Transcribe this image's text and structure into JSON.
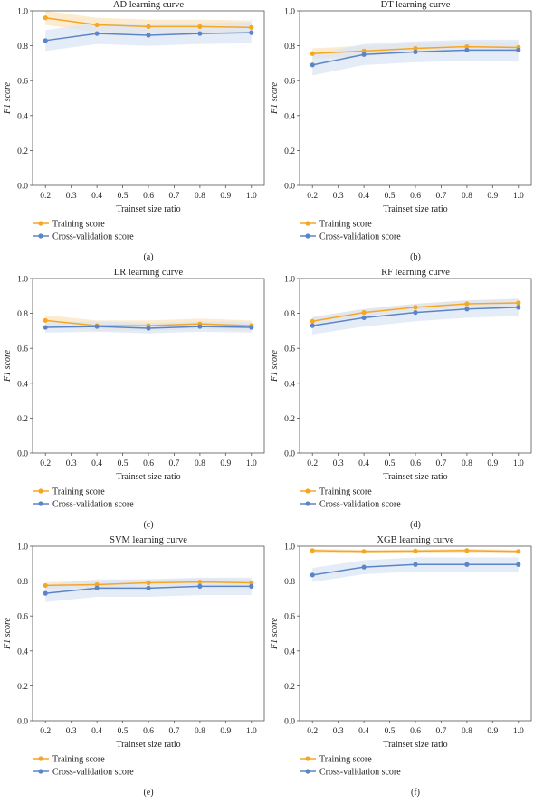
{
  "colors": {
    "training": "#f5a623",
    "cv": "#5b85c6",
    "training_band": "#fbe4bf",
    "cv_band": "#dbe6f6",
    "axis": "#555555"
  },
  "chart_data": [
    {
      "type": "line",
      "title": "AD learning curve",
      "caption": "(a)",
      "xlabel": "Trainset size ratio",
      "ylabel": "F1 score",
      "xlim": [
        0.15,
        1.05
      ],
      "ylim": [
        0.0,
        1.0
      ],
      "xticks": [
        "0.2",
        "0.3",
        "0.4",
        "0.5",
        "0.6",
        "0.7",
        "0.8",
        "0.9",
        "1.0"
      ],
      "yticks": [
        "0.0",
        "0.2",
        "0.4",
        "0.6",
        "0.8",
        "1.0"
      ],
      "x": [
        0.2,
        0.4,
        0.6,
        0.8,
        1.0
      ],
      "series": [
        {
          "name": "Training score",
          "values": [
            0.96,
            0.92,
            0.91,
            0.91,
            0.905
          ],
          "band": 0.04
        },
        {
          "name": "Cross-validation score",
          "values": [
            0.83,
            0.87,
            0.86,
            0.87,
            0.875
          ],
          "band": 0.06
        }
      ],
      "legend": "bottom-left",
      "grid": false
    },
    {
      "type": "line",
      "title": "DT learning curve",
      "caption": "(b)",
      "xlabel": "Trainset size ratio",
      "ylabel": "F1 score",
      "xlim": [
        0.15,
        1.05
      ],
      "ylim": [
        0.0,
        1.0
      ],
      "xticks": [
        "0.2",
        "0.3",
        "0.4",
        "0.5",
        "0.6",
        "0.7",
        "0.8",
        "0.9",
        "1.0"
      ],
      "yticks": [
        "0.0",
        "0.2",
        "0.4",
        "0.6",
        "0.8",
        "1.0"
      ],
      "x": [
        0.2,
        0.4,
        0.6,
        0.8,
        1.0
      ],
      "series": [
        {
          "name": "Training score",
          "values": [
            0.755,
            0.77,
            0.785,
            0.795,
            0.79
          ],
          "band": 0.03
        },
        {
          "name": "Cross-validation score",
          "values": [
            0.69,
            0.75,
            0.765,
            0.775,
            0.775
          ],
          "band": 0.06
        }
      ],
      "legend": "bottom-left",
      "grid": false
    },
    {
      "type": "line",
      "title": "LR learning curve",
      "caption": "(c)",
      "xlabel": "Trainset size ratio",
      "ylabel": "F1 score",
      "xlim": [
        0.15,
        1.05
      ],
      "ylim": [
        0.0,
        1.0
      ],
      "xticks": [
        "0.2",
        "0.3",
        "0.4",
        "0.5",
        "0.6",
        "0.7",
        "0.8",
        "0.9",
        "1.0"
      ],
      "yticks": [
        "0.0",
        "0.2",
        "0.4",
        "0.6",
        "0.8",
        "1.0"
      ],
      "x": [
        0.2,
        0.4,
        0.6,
        0.8,
        1.0
      ],
      "series": [
        {
          "name": "Training score",
          "values": [
            0.76,
            0.73,
            0.73,
            0.74,
            0.73
          ],
          "band": 0.03
        },
        {
          "name": "Cross-validation score",
          "values": [
            0.72,
            0.725,
            0.715,
            0.725,
            0.72
          ],
          "band": 0.03
        }
      ],
      "legend": "bottom-left",
      "grid": false
    },
    {
      "type": "line",
      "title": "RF learning curve",
      "caption": "(d)",
      "xlabel": "Trainset size ratio",
      "ylabel": "F1 score",
      "xlim": [
        0.15,
        1.05
      ],
      "ylim": [
        0.0,
        1.0
      ],
      "xticks": [
        "0.2",
        "0.3",
        "0.4",
        "0.5",
        "0.6",
        "0.7",
        "0.8",
        "0.9",
        "1.0"
      ],
      "yticks": [
        "0.0",
        "0.2",
        "0.4",
        "0.6",
        "0.8",
        "1.0"
      ],
      "x": [
        0.2,
        0.4,
        0.6,
        0.8,
        1.0
      ],
      "series": [
        {
          "name": "Training score",
          "values": [
            0.755,
            0.805,
            0.835,
            0.855,
            0.86
          ],
          "band": 0.02
        },
        {
          "name": "Cross-validation score",
          "values": [
            0.73,
            0.775,
            0.805,
            0.825,
            0.835
          ],
          "band": 0.05
        }
      ],
      "legend": "bottom-left",
      "grid": false
    },
    {
      "type": "line",
      "title": "SVM learning curve",
      "caption": "(e)",
      "xlabel": "Trainset size ratio",
      "ylabel": "F1 score",
      "xlim": [
        0.15,
        1.05
      ],
      "ylim": [
        0.0,
        1.0
      ],
      "xticks": [
        "0.2",
        "0.3",
        "0.4",
        "0.5",
        "0.6",
        "0.7",
        "0.8",
        "0.9",
        "1.0"
      ],
      "yticks": [
        "0.0",
        "0.2",
        "0.4",
        "0.6",
        "0.8",
        "1.0"
      ],
      "x": [
        0.2,
        0.4,
        0.6,
        0.8,
        1.0
      ],
      "series": [
        {
          "name": "Training score",
          "values": [
            0.775,
            0.78,
            0.79,
            0.795,
            0.79
          ],
          "band": 0.02
        },
        {
          "name": "Cross-validation score",
          "values": [
            0.73,
            0.76,
            0.76,
            0.77,
            0.77
          ],
          "band": 0.05
        }
      ],
      "legend": "bottom-left",
      "grid": false
    },
    {
      "type": "line",
      "title": "XGB learning curve",
      "caption": "(f)",
      "xlabel": "Trainset size ratio",
      "ylabel": "F1 score",
      "xlim": [
        0.15,
        1.05
      ],
      "ylim": [
        0.0,
        1.0
      ],
      "xticks": [
        "0.2",
        "0.3",
        "0.4",
        "0.5",
        "0.6",
        "0.7",
        "0.8",
        "0.9",
        "1.0"
      ],
      "yticks": [
        "0.0",
        "0.2",
        "0.4",
        "0.6",
        "0.8",
        "1.0"
      ],
      "x": [
        0.2,
        0.4,
        0.6,
        0.8,
        1.0
      ],
      "series": [
        {
          "name": "Training score",
          "values": [
            0.975,
            0.97,
            0.972,
            0.975,
            0.97
          ],
          "band": 0.01
        },
        {
          "name": "Cross-validation score",
          "values": [
            0.835,
            0.88,
            0.895,
            0.895,
            0.895
          ],
          "band": 0.04
        }
      ],
      "legend": "bottom-left",
      "grid": false
    }
  ]
}
